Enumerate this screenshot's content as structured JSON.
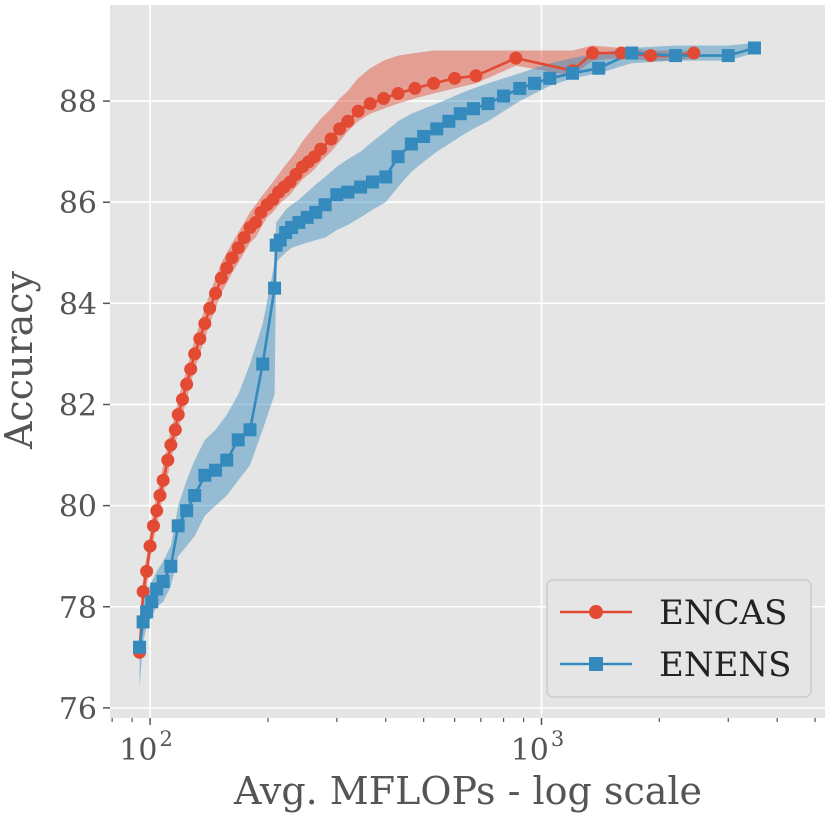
{
  "chart_data": {
    "type": "line",
    "title": "",
    "xlabel": "Avg. MFLOPs - log scale",
    "ylabel": "Accuracy",
    "x_scale": "log",
    "xlim": [
      79,
      5300
    ],
    "ylim": [
      75.8,
      89.9
    ],
    "x_ticks": [
      {
        "value": 100,
        "base": "10",
        "exp": "2"
      },
      {
        "value": 1000,
        "base": "10",
        "exp": "3"
      }
    ],
    "x_minor_ticks": [
      80,
      90,
      200,
      300,
      400,
      500,
      600,
      700,
      800,
      900,
      2000,
      3000,
      4000,
      5000
    ],
    "y_ticks": [
      76,
      78,
      80,
      82,
      84,
      86,
      88
    ],
    "grid": true,
    "legend_position": "bottom-right",
    "series": [
      {
        "name": "ENCAS",
        "color": "#E24A33",
        "marker": "circle",
        "x": [
          94,
          96,
          98,
          100,
          102,
          104,
          106,
          108,
          111,
          113,
          116,
          118,
          121,
          124,
          127,
          130,
          134,
          138,
          142,
          147,
          152,
          157,
          162,
          168,
          174,
          180,
          186,
          192,
          199,
          206,
          213,
          220,
          228,
          236,
          245,
          254,
          263,
          273,
          290,
          305,
          320,
          340,
          365,
          395,
          430,
          475,
          530,
          600,
          680,
          860,
          1200,
          1350,
          1600,
          1900,
          2200,
          2450
        ],
        "y": [
          77.1,
          78.3,
          78.7,
          79.2,
          79.6,
          79.9,
          80.2,
          80.5,
          80.9,
          81.2,
          81.5,
          81.8,
          82.1,
          82.4,
          82.7,
          83.0,
          83.3,
          83.6,
          83.9,
          84.2,
          84.5,
          84.7,
          84.9,
          85.1,
          85.3,
          85.5,
          85.6,
          85.8,
          85.95,
          86.05,
          86.2,
          86.3,
          86.4,
          86.55,
          86.7,
          86.8,
          86.9,
          87.05,
          87.25,
          87.45,
          87.6,
          87.8,
          87.95,
          88.05,
          88.15,
          88.25,
          88.35,
          88.45,
          88.5,
          88.85,
          88.6,
          88.95,
          88.95,
          88.9,
          88.9,
          88.95
        ],
        "y_lower": [
          76.9,
          78.0,
          78.4,
          78.9,
          79.3,
          79.6,
          79.9,
          80.2,
          80.6,
          80.9,
          81.2,
          81.5,
          81.8,
          82.1,
          82.4,
          82.7,
          83.0,
          83.3,
          83.6,
          83.9,
          84.2,
          84.4,
          84.6,
          84.8,
          85.0,
          85.2,
          85.3,
          85.5,
          85.7,
          85.8,
          85.95,
          86.05,
          86.15,
          86.3,
          86.45,
          86.55,
          86.65,
          86.8,
          87.0,
          87.2,
          87.4,
          87.6,
          87.75,
          87.85,
          87.95,
          88.05,
          88.15,
          88.25,
          88.35,
          88.7,
          88.5,
          88.8,
          88.85,
          88.8,
          88.8,
          88.85
        ],
        "y_upper": [
          77.4,
          78.6,
          79.0,
          79.5,
          79.9,
          80.2,
          80.5,
          80.8,
          81.2,
          81.5,
          81.8,
          82.1,
          82.4,
          82.7,
          83.0,
          83.3,
          83.6,
          83.9,
          84.2,
          84.5,
          84.8,
          85.0,
          85.2,
          85.4,
          85.6,
          85.8,
          85.95,
          86.1,
          86.25,
          86.4,
          86.55,
          86.7,
          86.85,
          87.0,
          87.2,
          87.35,
          87.5,
          87.65,
          87.85,
          88.05,
          88.2,
          88.45,
          88.65,
          88.8,
          88.9,
          88.95,
          89.0,
          89.0,
          89.0,
          89.0,
          89.0,
          89.1,
          89.05,
          89.0,
          89.0,
          89.0
        ]
      },
      {
        "name": "ENENS",
        "color": "#348ABD",
        "marker": "square",
        "x": [
          94,
          96,
          98,
          101,
          104,
          108,
          113,
          118,
          124,
          130,
          138,
          147,
          157,
          168,
          180,
          194,
          208,
          210,
          215,
          222,
          230,
          240,
          252,
          265,
          280,
          300,
          320,
          345,
          370,
          400,
          430,
          465,
          500,
          540,
          580,
          620,
          670,
          730,
          800,
          880,
          960,
          1050,
          1200,
          1400,
          1700,
          2200,
          3000,
          3500
        ],
        "y": [
          77.2,
          77.7,
          77.9,
          78.1,
          78.35,
          78.5,
          78.8,
          79.6,
          79.9,
          80.2,
          80.6,
          80.7,
          80.9,
          81.3,
          81.5,
          82.8,
          84.3,
          85.15,
          85.25,
          85.4,
          85.5,
          85.6,
          85.7,
          85.8,
          85.95,
          86.15,
          86.2,
          86.3,
          86.4,
          86.5,
          86.9,
          87.15,
          87.3,
          87.45,
          87.6,
          87.75,
          87.85,
          87.95,
          88.1,
          88.25,
          88.35,
          88.45,
          88.55,
          88.65,
          88.95,
          88.9,
          88.9,
          89.05
        ],
        "y_lower": [
          76.4,
          77.3,
          77.6,
          77.8,
          78.0,
          78.1,
          78.4,
          79.0,
          79.2,
          79.4,
          79.8,
          80.0,
          80.2,
          80.5,
          80.8,
          81.5,
          82.2,
          84.8,
          84.9,
          85.0,
          85.1,
          85.15,
          85.2,
          85.25,
          85.3,
          85.45,
          85.55,
          85.7,
          85.85,
          86.0,
          86.3,
          86.6,
          86.8,
          87.0,
          87.15,
          87.3,
          87.45,
          87.6,
          87.8,
          88.0,
          88.15,
          88.3,
          88.45,
          88.55,
          88.75,
          88.8,
          88.8,
          88.95
        ],
        "y_upper": [
          77.6,
          78.1,
          78.3,
          78.5,
          78.7,
          78.9,
          79.2,
          80.0,
          80.5,
          80.9,
          81.3,
          81.5,
          81.8,
          82.2,
          82.8,
          83.6,
          84.8,
          85.6,
          85.7,
          85.85,
          85.95,
          86.05,
          86.2,
          86.35,
          86.5,
          86.7,
          86.85,
          87.0,
          87.2,
          87.4,
          87.6,
          87.75,
          87.85,
          87.95,
          88.05,
          88.15,
          88.25,
          88.35,
          88.45,
          88.55,
          88.65,
          88.75,
          88.85,
          88.95,
          89.05,
          89.1,
          89.1,
          89.15
        ]
      }
    ]
  }
}
